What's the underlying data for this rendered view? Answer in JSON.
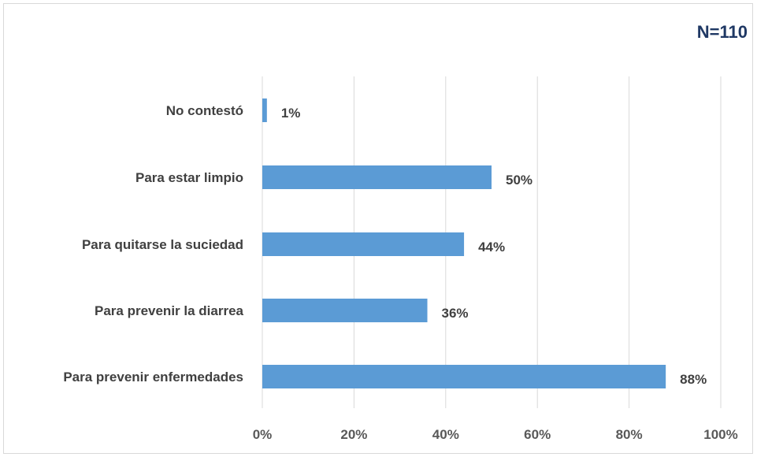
{
  "chart_data": {
    "type": "bar",
    "orientation": "horizontal",
    "annotation": "N=110",
    "categories": [
      "No contestó",
      "Para estar limpio",
      "Para quitarse la suciedad",
      "Para prevenir la diarrea",
      "Para prevenir enfermedades"
    ],
    "values": [
      1,
      50,
      44,
      36,
      88
    ],
    "data_labels": [
      "1%",
      "50%",
      "44%",
      "36%",
      "88%"
    ],
    "xlim": [
      0,
      100
    ],
    "xticks": [
      0,
      20,
      40,
      60,
      80,
      100
    ],
    "xtick_labels": [
      "0%",
      "20%",
      "40%",
      "60%",
      "80%",
      "100%"
    ],
    "grid": true,
    "bar_color": "#5b9bd5",
    "gridline_color": "#d9d9d9",
    "annotation_color": "#1f3864"
  }
}
